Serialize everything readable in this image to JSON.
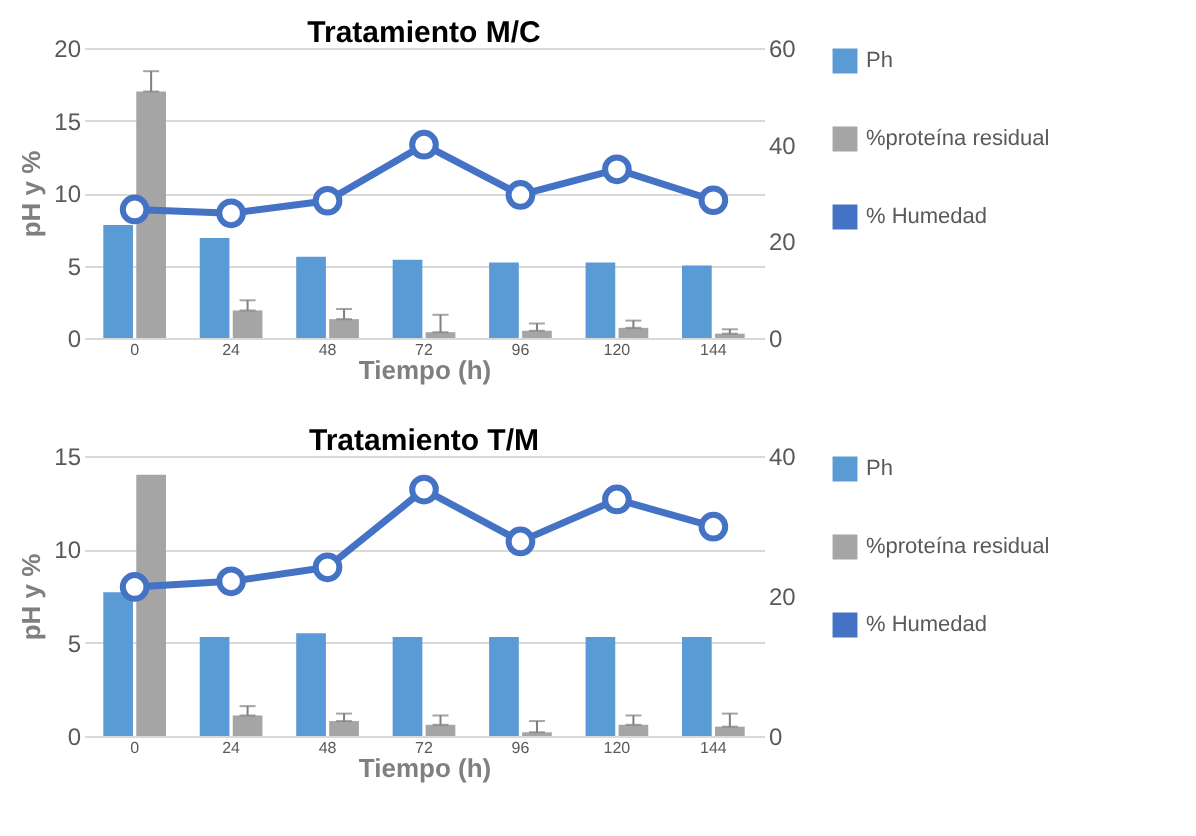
{
  "chart_data": [
    {
      "type": "bar",
      "title": "Tratamiento M/C",
      "xlabel": "Tiempo (h)",
      "ylabel": "pH y %",
      "categories": [
        "0",
        "24",
        "48",
        "72",
        "96",
        "120",
        "144"
      ],
      "series": [
        {
          "name": "Ph",
          "color": "#5b9bd5",
          "values": [
            7.8,
            6.9,
            5.6,
            5.4,
            5.2,
            5.2,
            5.0
          ]
        },
        {
          "name": "%proteína residual",
          "color": "#a5a5a5",
          "values": [
            17,
            1.9,
            1.3,
            0.4,
            0.5,
            0.7,
            0.3
          ],
          "errors": [
            [
              17,
              18.4
            ],
            [
              1.9,
              2.6
            ],
            [
              1.3,
              2.0
            ],
            [
              0.4,
              1.6
            ],
            [
              0.5,
              1.0
            ],
            [
              0.7,
              1.2
            ],
            [
              0.3,
              0.6
            ]
          ]
        },
        {
          "name": "% Humedad",
          "type": "line",
          "axis": "y2",
          "color": "#4472c4",
          "values": [
            26.6,
            25.8,
            28.4,
            40,
            29.6,
            34.9,
            28.5
          ]
        }
      ],
      "ylim": [
        0,
        20
      ],
      "yticks": [
        0,
        5,
        10,
        15,
        20
      ],
      "y2lim": [
        0,
        60
      ],
      "y2ticks": [
        0,
        20,
        40,
        60
      ],
      "grid": "y",
      "legend": "right",
      "marker": "circle"
    },
    {
      "type": "bar",
      "title": "Tratamiento T/M",
      "xlabel": "Tiempo (h)",
      "ylabel": "pH  y %",
      "categories": [
        "0",
        "24",
        "48",
        "72",
        "96",
        "120",
        "144"
      ],
      "series": [
        {
          "name": "Ph",
          "color": "#5b9bd5",
          "values": [
            7.7,
            5.3,
            5.5,
            5.3,
            5.3,
            5.3,
            5.3
          ]
        },
        {
          "name": "%proteína residual",
          "color": "#a5a5a5",
          "values": [
            14,
            1.1,
            0.8,
            0.6,
            0.2,
            0.6,
            0.5
          ],
          "errors": [
            null,
            [
              1.1,
              1.6
            ],
            [
              0.8,
              1.2
            ],
            [
              0.6,
              1.1
            ],
            [
              0.2,
              0.8
            ],
            [
              0.6,
              1.1
            ],
            [
              0.5,
              1.2
            ]
          ]
        },
        {
          "name": "% Humedad",
          "type": "line",
          "axis": "y2",
          "color": "#4472c4",
          "values": [
            21.3,
            22.1,
            24.1,
            35.2,
            27.8,
            33.8,
            29.9
          ]
        }
      ],
      "ylim": [
        0,
        15
      ],
      "yticks": [
        0,
        5,
        10,
        15
      ],
      "y2lim": [
        0,
        40
      ],
      "y2ticks": [
        0,
        20,
        40
      ],
      "grid": "y",
      "legend": "right",
      "marker": "circle"
    }
  ]
}
